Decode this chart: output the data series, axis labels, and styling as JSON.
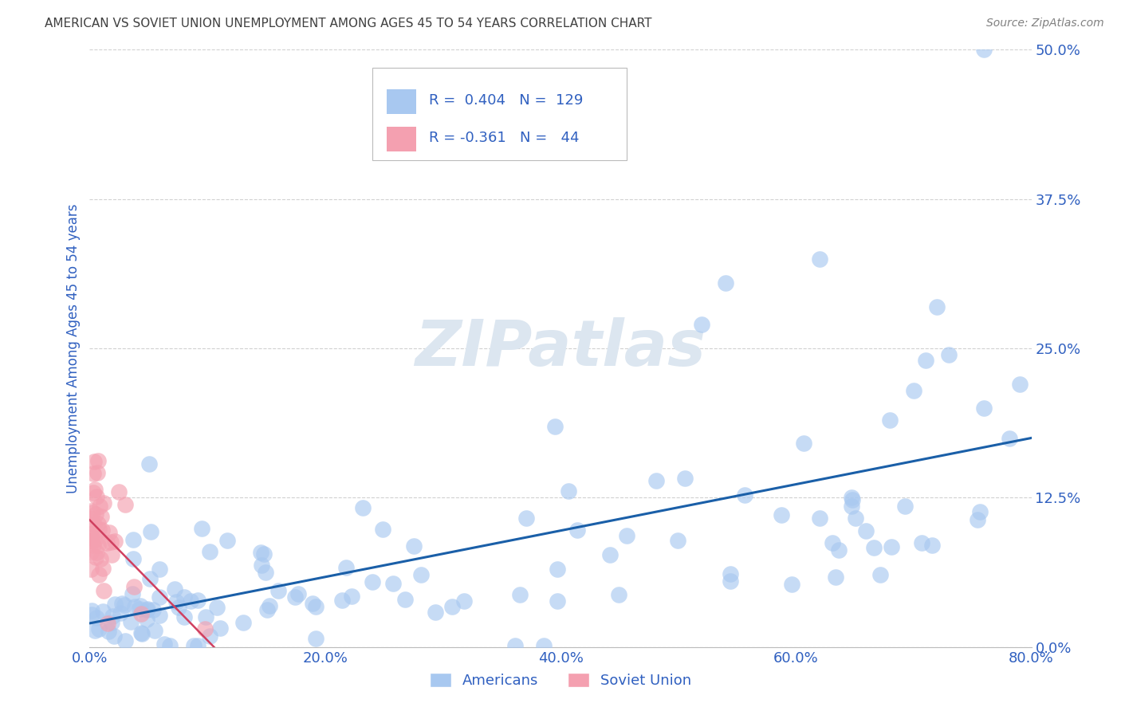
{
  "title": "AMERICAN VS SOVIET UNION UNEMPLOYMENT AMONG AGES 45 TO 54 YEARS CORRELATION CHART",
  "source": "Source: ZipAtlas.com",
  "ylabel_label": "Unemployment Among Ages 45 to 54 years",
  "xtick_labels": [
    "0.0%",
    "20.0%",
    "40.0%",
    "60.0%",
    "80.0%"
  ],
  "ytick_labels": [
    "0.0%",
    "12.5%",
    "25.0%",
    "37.5%",
    "50.0%"
  ],
  "xlim": [
    0,
    0.8
  ],
  "ylim": [
    0,
    0.5
  ],
  "american_color": "#a8c8f0",
  "soviet_color": "#f4a0b0",
  "american_line_color": "#1a5fa8",
  "soviet_line_color": "#d04060",
  "text_color": "#3060c0",
  "title_color": "#404040",
  "source_color": "#808080",
  "watermark_color": "#dce6f0",
  "r_american": 0.404,
  "n_american": 129,
  "r_soviet": -0.361,
  "n_soviet": 44,
  "background_color": "#ffffff",
  "grid_color": "#cccccc",
  "figsize": [
    14.06,
    8.92
  ],
  "dpi": 100
}
